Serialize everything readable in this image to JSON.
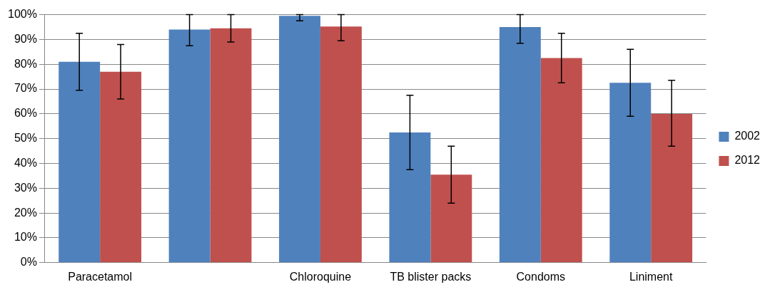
{
  "chart_data": {
    "type": "bar",
    "categories": [
      "Paracetamol",
      null,
      "Chloroquine",
      "TB blister packs",
      "Condoms",
      "Liniment"
    ],
    "series": [
      {
        "name": "2002",
        "color": "#4f81bd",
        "values": [
          81,
          94,
          99.5,
          52.5,
          95,
          72.5
        ],
        "errors": [
          [
            69.5,
            92.5
          ],
          [
            87.5,
            100
          ],
          [
            97.5,
            100
          ],
          [
            37.5,
            67.5
          ],
          [
            88.5,
            100
          ],
          [
            59,
            86
          ]
        ]
      },
      {
        "name": "2012",
        "color": "#c0504d",
        "values": [
          77,
          94.5,
          95.2,
          35.5,
          82.5,
          60
        ],
        "errors": [
          [
            66,
            88
          ],
          [
            89,
            100
          ],
          [
            89.5,
            100
          ],
          [
            24,
            47
          ],
          [
            72.5,
            92.5
          ],
          [
            47,
            73.5
          ]
        ]
      }
    ],
    "ylim": [
      0,
      100
    ],
    "yticks": [
      {
        "value": 0,
        "label": "0%"
      },
      {
        "value": 10,
        "label": "10%"
      },
      {
        "value": 20,
        "label": "20%"
      },
      {
        "value": 30,
        "label": "30%"
      },
      {
        "value": 40,
        "label": "40%"
      },
      {
        "value": 50,
        "label": "50%"
      },
      {
        "value": 60,
        "label": "60%"
      },
      {
        "value": 70,
        "label": "70%"
      },
      {
        "value": 80,
        "label": "80%"
      },
      {
        "value": 90,
        "label": "90%"
      },
      {
        "value": 100,
        "label": "100%"
      }
    ],
    "grid": "y",
    "legend": "right"
  }
}
